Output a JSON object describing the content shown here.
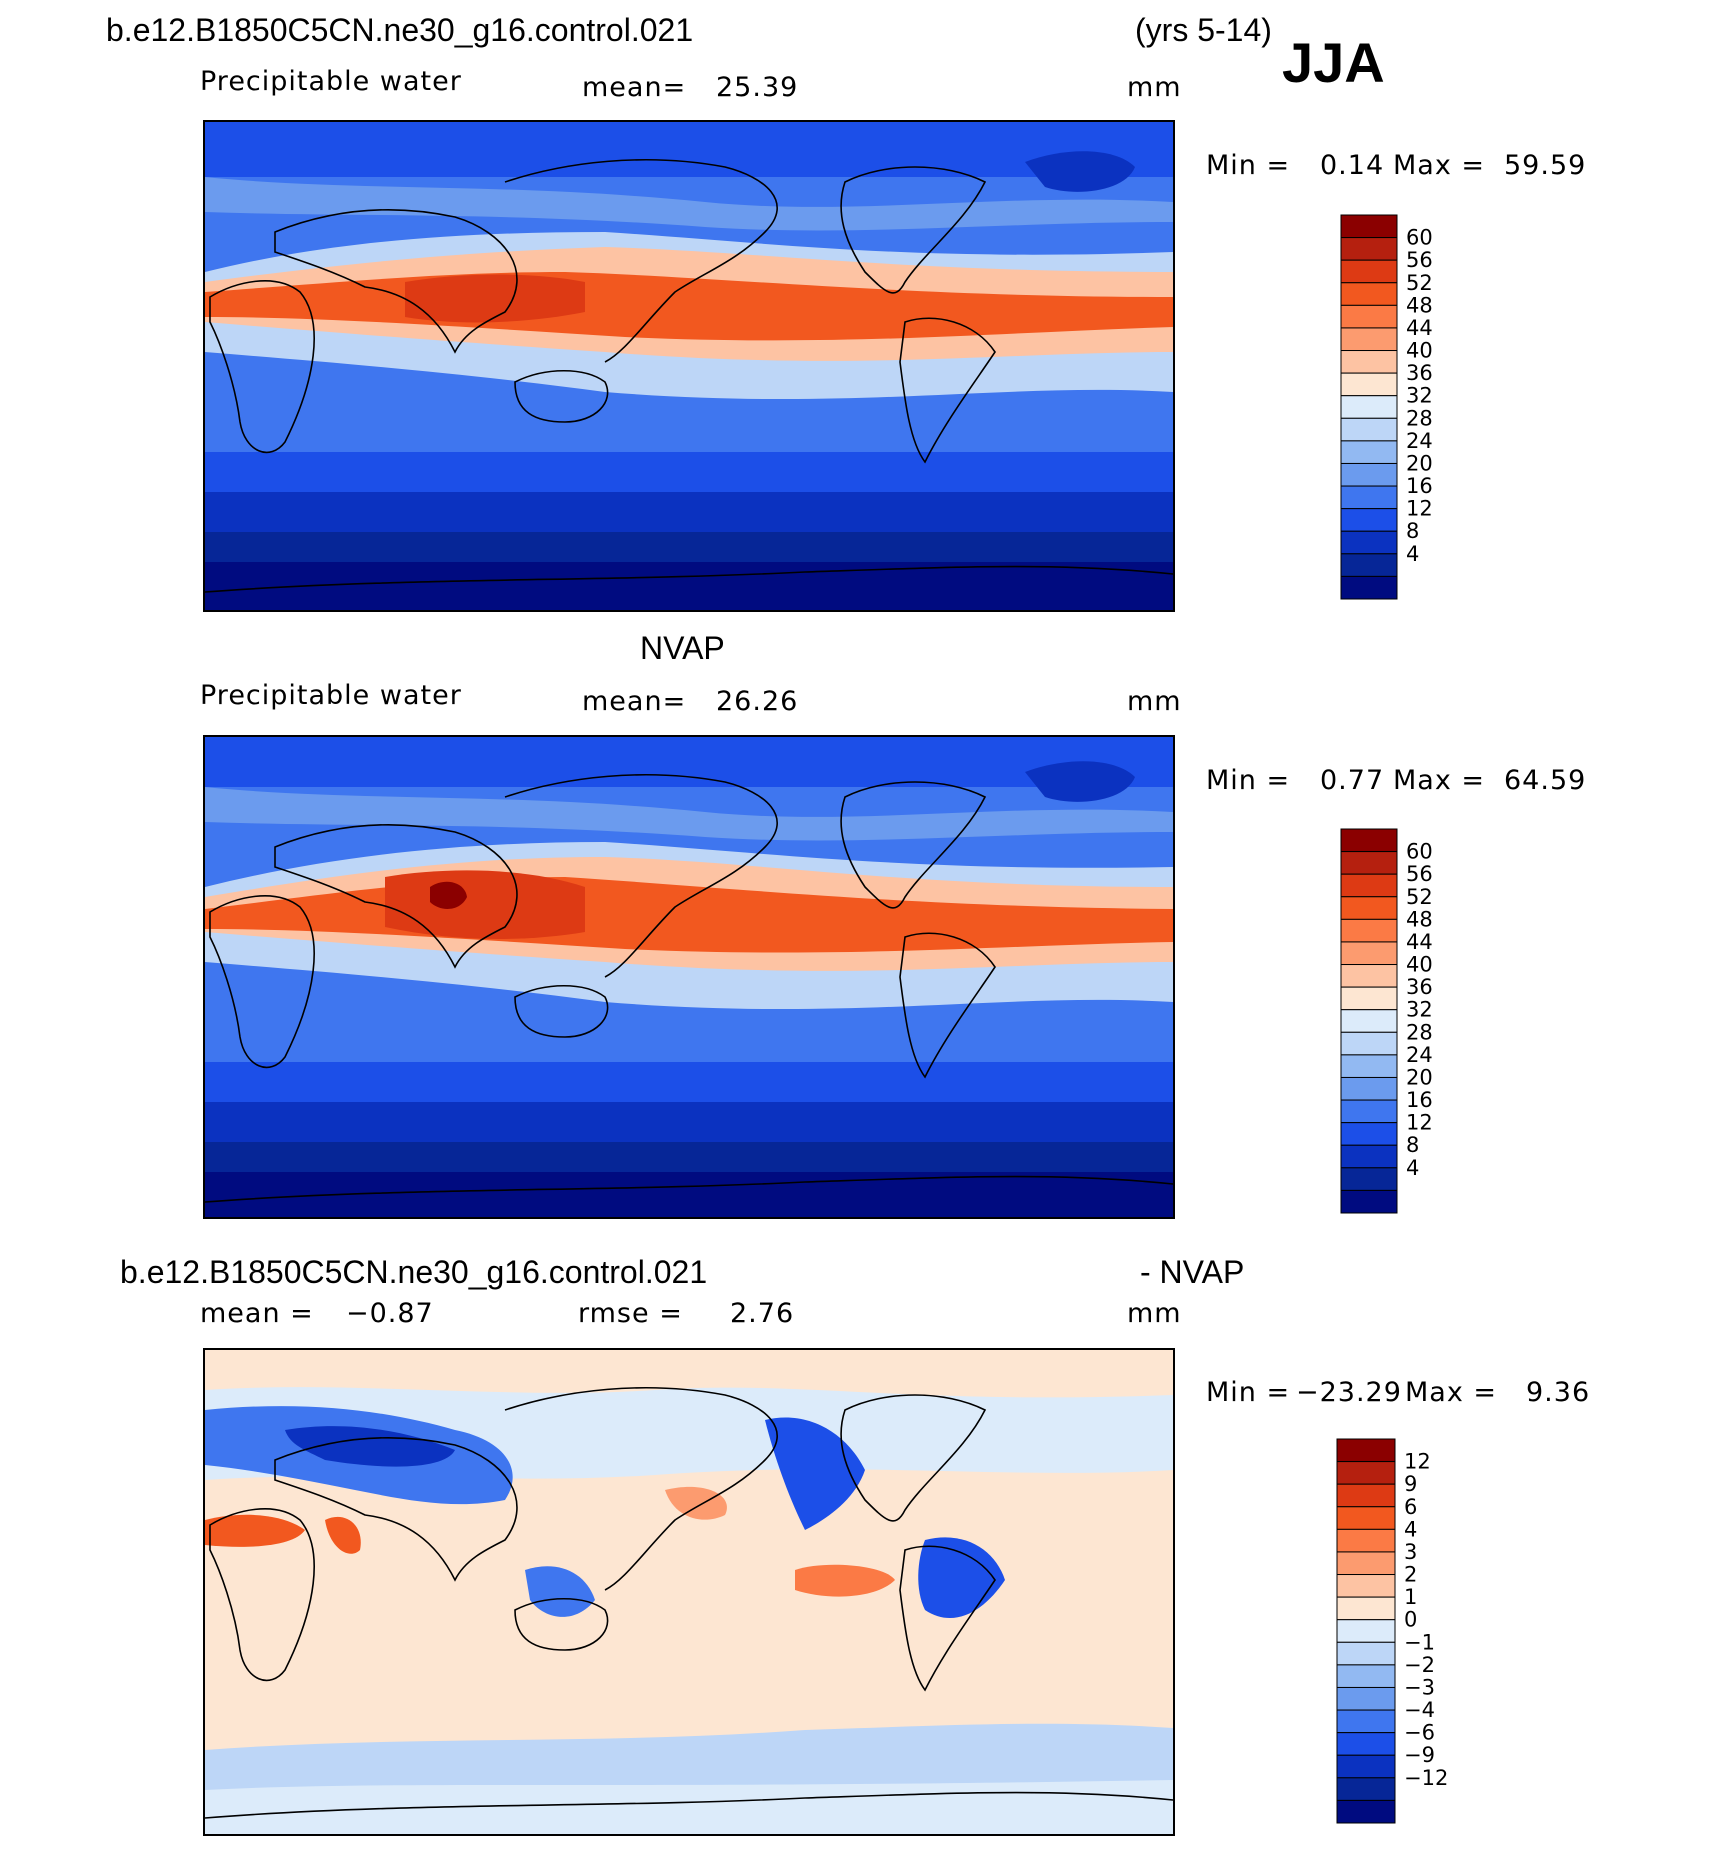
{
  "header": {
    "case_name": "b.e12.B1850C5CN.ne30_g16.control.021",
    "years": "(yrs 5-14)",
    "season": "JJA"
  },
  "panel1": {
    "variable": "Precipitable water",
    "mean_label": "mean=",
    "mean_value": "25.39",
    "units": "mm",
    "min_label": "Min =",
    "min_value": "0.14",
    "max_label": "Max =",
    "max_value": "59.59",
    "colorbar_labels": [
      "60",
      "56",
      "52",
      "48",
      "44",
      "40",
      "36",
      "32",
      "28",
      "24",
      "20",
      "16",
      "12",
      "8",
      "4"
    ]
  },
  "panel2": {
    "title": "NVAP",
    "variable": "Precipitable water",
    "mean_label": "mean=",
    "mean_value": "26.26",
    "units": "mm",
    "min_label": "Min =",
    "min_value": "0.77",
    "max_label": "Max =",
    "max_value": "64.59",
    "colorbar_labels": [
      "60",
      "56",
      "52",
      "48",
      "44",
      "40",
      "36",
      "32",
      "28",
      "24",
      "20",
      "16",
      "12",
      "8",
      "4"
    ]
  },
  "panel3": {
    "title_left": "b.e12.B1850C5CN.ne30_g16.control.021",
    "title_right": "- NVAP",
    "mean_label": "mean =",
    "mean_value": "−0.87",
    "rmse_label": "rmse =",
    "rmse_value": "2.76",
    "units": "mm",
    "min_label": "Min =",
    "min_value": "−23.29",
    "max_label": "Max =",
    "max_value": "9.36",
    "colorbar_labels": [
      "12",
      "9",
      "6",
      "4",
      "3",
      "2",
      "1",
      "0",
      "−1",
      "−2",
      "−3",
      "−4",
      "−6",
      "−9",
      "−12"
    ]
  },
  "colors": {
    "abs_scale": [
      "#8b0000",
      "#b5200f",
      "#dd3a14",
      "#f2581f",
      "#fb7a45",
      "#fc9b6f",
      "#fdc3a3",
      "#fde6d2",
      "#dcebfa",
      "#bdd6f7",
      "#92b9f2",
      "#6b9bee",
      "#3f76ef",
      "#1c4fe8",
      "#0b32c0",
      "#062697",
      "#000b80"
    ],
    "diff_scale": [
      "#8b0000",
      "#b5200f",
      "#dd3a14",
      "#f2581f",
      "#fb7a45",
      "#fc9b6f",
      "#fdc3a3",
      "#fde6d2",
      "#dcebfa",
      "#bdd6f7",
      "#92b9f2",
      "#6b9bee",
      "#3f76ef",
      "#1c4fe8",
      "#0b32c0",
      "#062697",
      "#000b80"
    ]
  }
}
